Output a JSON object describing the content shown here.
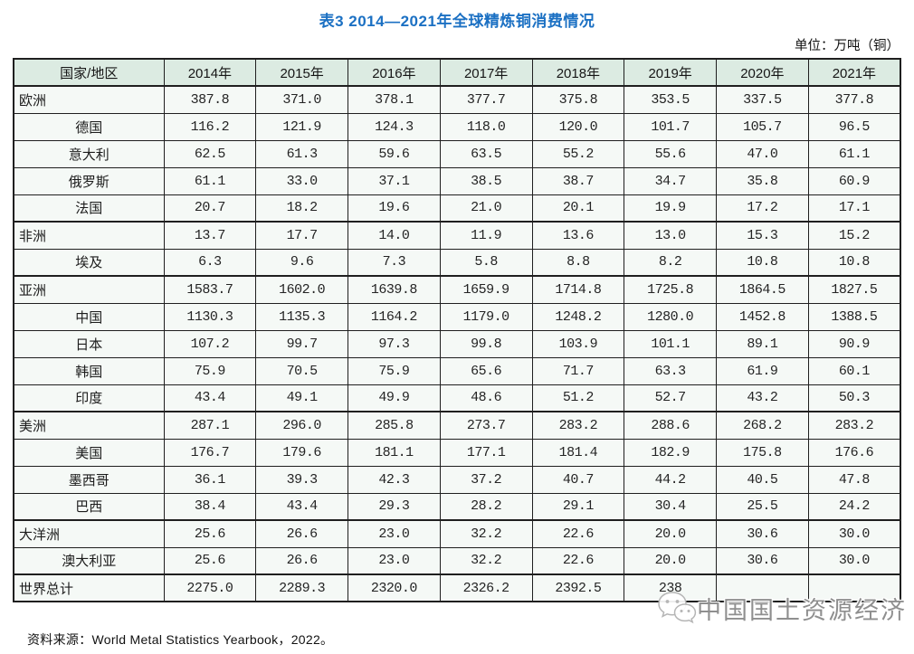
{
  "page": {
    "title": "表3 2014—2021年全球精炼铜消费情况",
    "unit_label": "单位：万吨（铜）",
    "source_note": "资料来源：World Metal Statistics Yearbook，2022。"
  },
  "watermark": {
    "logo": "wechat-chat-bubbles-icon",
    "text": "中国国土资源经济"
  },
  "colors": {
    "title_blue": "#1b70c3",
    "header_bg": "#dcebe2",
    "cell_bg": "#f5f9f6",
    "border": "#1f1f1f",
    "watermark_gray": "#8f8f8f"
  },
  "chart_data": {
    "type": "table",
    "title": "表3 2014—2021年全球精炼铜消费情况",
    "unit": "万吨（铜）",
    "columns": [
      "国家/地区",
      "2014年",
      "2015年",
      "2016年",
      "2017年",
      "2018年",
      "2019年",
      "2020年",
      "2021年"
    ],
    "rows": [
      {
        "label": "欧洲",
        "level": "region",
        "values": [
          "387.8",
          "371.0",
          "378.1",
          "377.7",
          "375.8",
          "353.5",
          "337.5",
          "377.8"
        ]
      },
      {
        "label": "德国",
        "level": "country",
        "values": [
          "116.2",
          "121.9",
          "124.3",
          "118.0",
          "120.0",
          "101.7",
          "105.7",
          "96.5"
        ]
      },
      {
        "label": "意大利",
        "level": "country",
        "values": [
          "62.5",
          "61.3",
          "59.6",
          "63.5",
          "55.2",
          "55.6",
          "47.0",
          "61.1"
        ]
      },
      {
        "label": "俄罗斯",
        "level": "country",
        "values": [
          "61.1",
          "33.0",
          "37.1",
          "38.5",
          "38.7",
          "34.7",
          "35.8",
          "60.9"
        ]
      },
      {
        "label": "法国",
        "level": "country",
        "values": [
          "20.7",
          "18.2",
          "19.6",
          "21.0",
          "20.1",
          "19.9",
          "17.2",
          "17.1"
        ]
      },
      {
        "label": "非洲",
        "level": "region",
        "values": [
          "13.7",
          "17.7",
          "14.0",
          "11.9",
          "13.6",
          "13.0",
          "15.3",
          "15.2"
        ]
      },
      {
        "label": "埃及",
        "level": "country",
        "values": [
          "6.3",
          "9.6",
          "7.3",
          "5.8",
          "8.8",
          "8.2",
          "10.8",
          "10.8"
        ]
      },
      {
        "label": "亚洲",
        "level": "region",
        "values": [
          "1583.7",
          "1602.0",
          "1639.8",
          "1659.9",
          "1714.8",
          "1725.8",
          "1864.5",
          "1827.5"
        ]
      },
      {
        "label": "中国",
        "level": "country",
        "values": [
          "1130.3",
          "1135.3",
          "1164.2",
          "1179.0",
          "1248.2",
          "1280.0",
          "1452.8",
          "1388.5"
        ]
      },
      {
        "label": "日本",
        "level": "country",
        "values": [
          "107.2",
          "99.7",
          "97.3",
          "99.8",
          "103.9",
          "101.1",
          "89.1",
          "90.9"
        ]
      },
      {
        "label": "韩国",
        "level": "country",
        "values": [
          "75.9",
          "70.5",
          "75.9",
          "65.6",
          "71.7",
          "63.3",
          "61.9",
          "60.1"
        ]
      },
      {
        "label": "印度",
        "level": "country",
        "values": [
          "43.4",
          "49.1",
          "49.9",
          "48.6",
          "51.2",
          "52.7",
          "43.2",
          "50.3"
        ]
      },
      {
        "label": "美洲",
        "level": "region",
        "values": [
          "287.1",
          "296.0",
          "285.8",
          "273.7",
          "283.2",
          "288.6",
          "268.2",
          "283.2"
        ]
      },
      {
        "label": "美国",
        "level": "country",
        "values": [
          "176.7",
          "179.6",
          "181.1",
          "177.1",
          "181.4",
          "182.9",
          "175.8",
          "176.6"
        ]
      },
      {
        "label": "墨西哥",
        "level": "country",
        "values": [
          "36.1",
          "39.3",
          "42.3",
          "37.2",
          "40.7",
          "44.2",
          "40.5",
          "47.8"
        ]
      },
      {
        "label": "巴西",
        "level": "country",
        "values": [
          "38.4",
          "43.4",
          "29.3",
          "28.2",
          "29.1",
          "30.4",
          "25.5",
          "24.2"
        ]
      },
      {
        "label": "大洋洲",
        "level": "region",
        "values": [
          "25.6",
          "26.6",
          "23.0",
          "32.2",
          "22.6",
          "20.0",
          "30.6",
          "30.0"
        ]
      },
      {
        "label": "澳大利亚",
        "level": "country",
        "values": [
          "25.6",
          "26.6",
          "23.0",
          "32.2",
          "22.6",
          "20.0",
          "30.6",
          "30.0"
        ]
      },
      {
        "label": "世界总计",
        "level": "total",
        "values": [
          "2275.0",
          "2289.3",
          "2320.0",
          "2326.2",
          "2392.5",
          "238",
          "",
          ""
        ],
        "partially_obscured_by_watermark": true
      }
    ]
  }
}
